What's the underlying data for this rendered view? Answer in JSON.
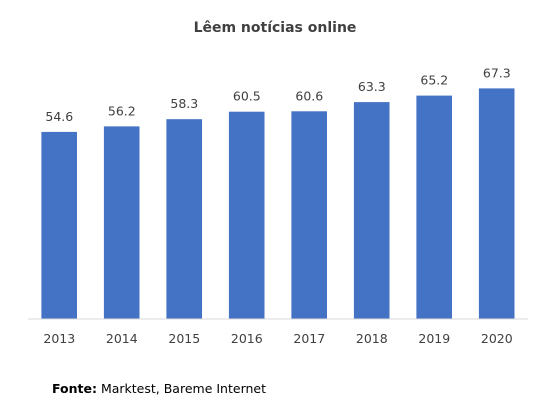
{
  "chart_data": {
    "type": "bar",
    "title": "Lêem notícias online",
    "categories": [
      "2013",
      "2014",
      "2015",
      "2016",
      "2017",
      "2018",
      "2019",
      "2020"
    ],
    "values": [
      54.6,
      56.2,
      58.3,
      60.5,
      60.6,
      63.3,
      65.2,
      67.3
    ],
    "value_labels": [
      "54.6",
      "56.2",
      "58.3",
      "60.5",
      "60.6",
      "63.3",
      "65.2",
      "67.3"
    ],
    "xlabel": "",
    "ylabel": "",
    "ylim": [
      0,
      75
    ],
    "grid": false,
    "legend": "none",
    "bar_color": "#4472C4",
    "axis_color": "#D9D9D9"
  },
  "source": {
    "label": "Fonte:",
    "text": " Marktest, Bareme Internet"
  }
}
